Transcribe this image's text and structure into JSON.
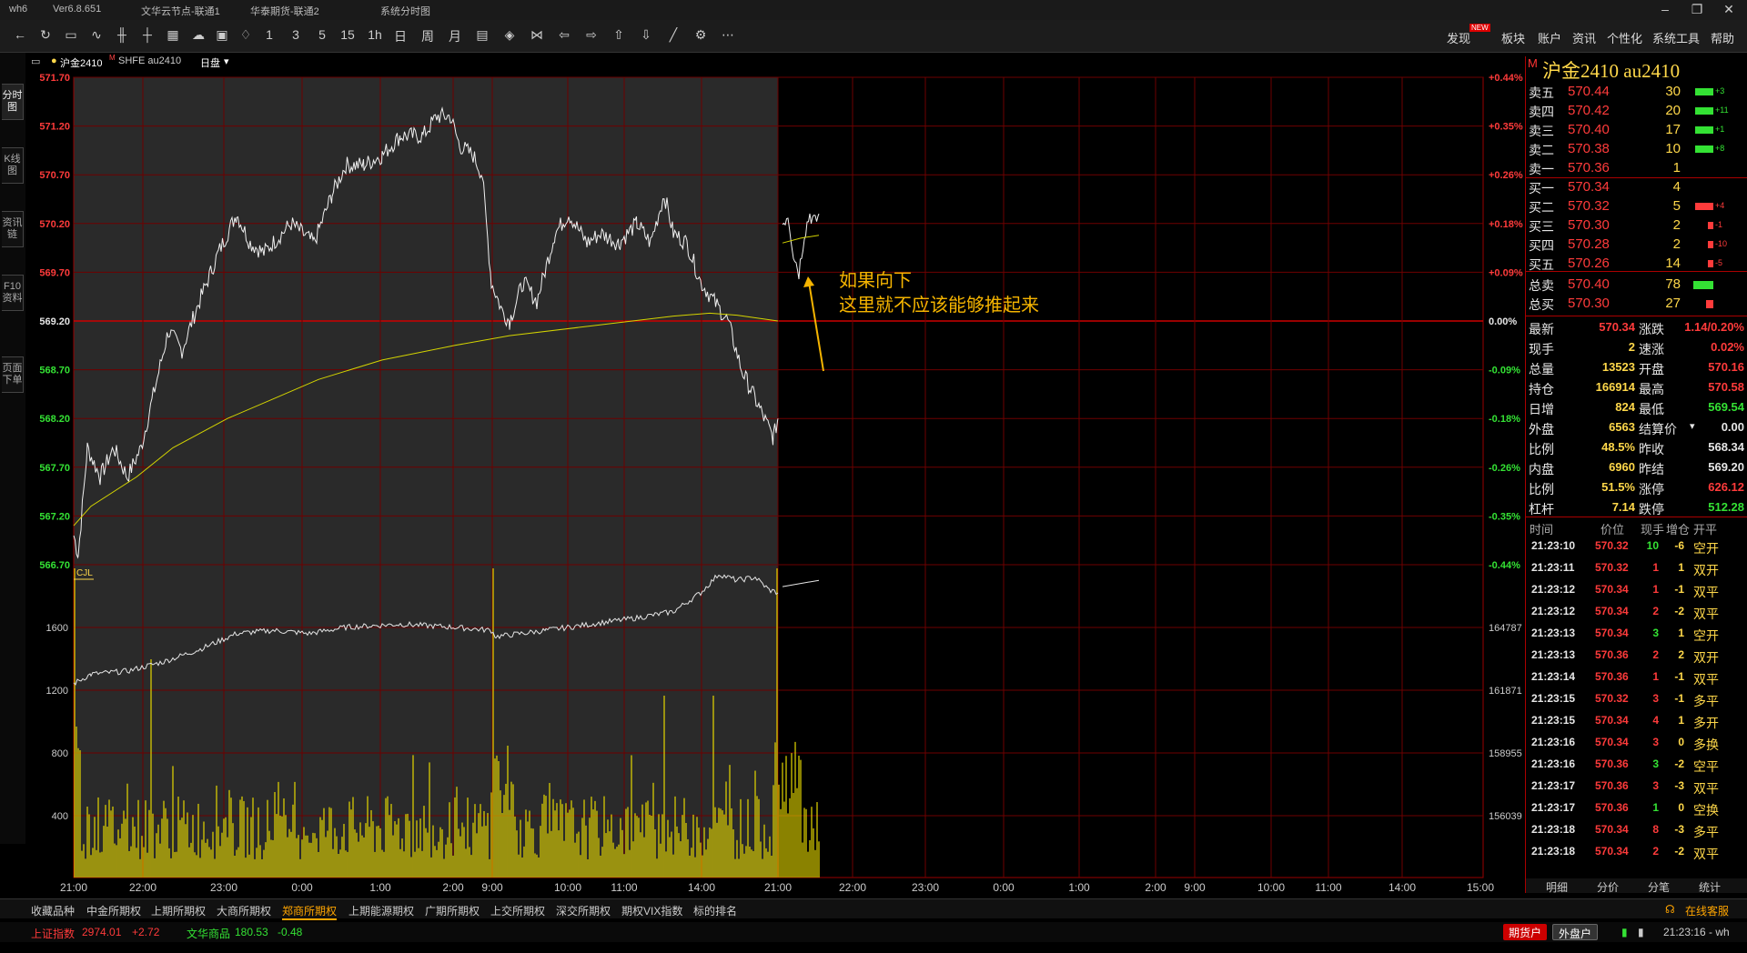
{
  "titlebar": {
    "app": "wh6",
    "version": "Ver6.8.651",
    "node1": "文华云节点-联通1",
    "node2": "华泰期货-联通2",
    "view": "系统分时图"
  },
  "toolbar": {
    "numbers": [
      "1",
      "3",
      "5",
      "15",
      "1h",
      "日",
      "周",
      "月"
    ],
    "right": [
      "发现",
      "板块",
      "账户",
      "资讯",
      "个性化",
      "系统工具",
      "帮助"
    ],
    "new_badge": "NEW"
  },
  "lefttabs": [
    "分时图",
    "K线图",
    "资讯链",
    "F10资料",
    "页面下单"
  ],
  "chart_header": {
    "name": "沪金2410",
    "suffix": "M",
    "market": "SHFE au2410",
    "period": "日盘"
  },
  "chart_data": {
    "type": "line",
    "x_ticks": [
      "21:00",
      "22:00",
      "23:00",
      "0:00",
      "1:00",
      "2:00",
      "9:00",
      "10:00",
      "11:00",
      "14:00",
      "21:00",
      "22:00",
      "23:00",
      "0:00",
      "1:00",
      "2:00",
      "9:00",
      "10:00",
      "11:00",
      "14:00",
      "15:00"
    ],
    "price_ticks": [
      "571.70",
      "571.20",
      "570.70",
      "570.20",
      "569.70",
      "569.20",
      "568.70",
      "568.20",
      "567.70",
      "567.20",
      "566.70"
    ],
    "pct_ticks": [
      "+0.44%",
      "+0.35%",
      "+0.26%",
      "+0.18%",
      "+0.09%",
      "0.00%",
      "-0.09%",
      "-0.18%",
      "-0.26%",
      "-0.35%",
      "-0.44%"
    ],
    "ylim": [
      566.7,
      571.7
    ],
    "prev_settle": 569.2,
    "vol_ticks": [
      "1600",
      "1200",
      "800",
      "400"
    ],
    "oi_ticks": [
      "164787",
      "161871",
      "158955",
      "156039"
    ],
    "vol_label": "CJL",
    "annotation": [
      "如果向下",
      "这里就不应该能够推起来"
    ]
  },
  "panel": {
    "title": "沪金2410  au2410",
    "badge": "M",
    "asks": [
      {
        "l": "卖五",
        "p": "570.44",
        "v": "30",
        "c": "+3"
      },
      {
        "l": "卖四",
        "p": "570.42",
        "v": "20",
        "c": "+11"
      },
      {
        "l": "卖三",
        "p": "570.40",
        "v": "17",
        "c": "+1"
      },
      {
        "l": "卖二",
        "p": "570.38",
        "v": "10",
        "c": "+8"
      },
      {
        "l": "卖一",
        "p": "570.36",
        "v": "1",
        "c": ""
      }
    ],
    "bids": [
      {
        "l": "买一",
        "p": "570.34",
        "v": "4",
        "c": ""
      },
      {
        "l": "买二",
        "p": "570.32",
        "v": "5",
        "c": "+4"
      },
      {
        "l": "买三",
        "p": "570.30",
        "v": "2",
        "c": "-1"
      },
      {
        "l": "买四",
        "p": "570.28",
        "v": "2",
        "c": "-10"
      },
      {
        "l": "买五",
        "p": "570.26",
        "v": "14",
        "c": "-5"
      }
    ],
    "totals": [
      {
        "l": "总卖",
        "p": "570.40",
        "v": "78"
      },
      {
        "l": "总买",
        "p": "570.30",
        "v": "27"
      }
    ],
    "stats": [
      [
        "最新",
        "570.34",
        "涨跌",
        "1.14/0.20%"
      ],
      [
        "现手",
        "2",
        "速涨",
        "0.02%"
      ],
      [
        "总量",
        "13523",
        "开盘",
        "570.16"
      ],
      [
        "持仓",
        "166914",
        "最高",
        "570.58"
      ],
      [
        "日增",
        "824",
        "最低",
        "569.54"
      ],
      [
        "外盘",
        "6563",
        "结算价",
        "0.00"
      ],
      [
        "比例",
        "48.5%",
        "昨收",
        "568.34"
      ],
      [
        "内盘",
        "6960",
        "昨结",
        "569.20"
      ],
      [
        "比例",
        "51.5%",
        "涨停",
        "626.12"
      ],
      [
        "杠杆",
        "7.14",
        "跌停",
        "512.28"
      ]
    ],
    "tick_headers": [
      "时间",
      "价位",
      "现手",
      "增仓",
      "开平"
    ],
    "ticks": [
      [
        "21:23:10",
        "570.32",
        "10",
        "-6",
        "空开"
      ],
      [
        "21:23:11",
        "570.32",
        "1",
        "1",
        "双开"
      ],
      [
        "21:23:12",
        "570.34",
        "1",
        "-1",
        "双平"
      ],
      [
        "21:23:12",
        "570.34",
        "2",
        "-2",
        "双平"
      ],
      [
        "21:23:13",
        "570.34",
        "3",
        "1",
        "空开"
      ],
      [
        "21:23:13",
        "570.36",
        "2",
        "2",
        "双开"
      ],
      [
        "21:23:14",
        "570.36",
        "1",
        "-1",
        "双平"
      ],
      [
        "21:23:15",
        "570.32",
        "3",
        "-1",
        "多平"
      ],
      [
        "21:23:15",
        "570.34",
        "4",
        "1",
        "多开"
      ],
      [
        "21:23:16",
        "570.34",
        "3",
        "0",
        "多换"
      ],
      [
        "21:23:16",
        "570.36",
        "3",
        "-2",
        "空平"
      ],
      [
        "21:23:17",
        "570.36",
        "3",
        "-3",
        "双平"
      ],
      [
        "21:23:17",
        "570.36",
        "1",
        "0",
        "空换"
      ],
      [
        "21:23:18",
        "570.34",
        "8",
        "-3",
        "多平"
      ],
      [
        "21:23:18",
        "570.34",
        "2",
        "-2",
        "双平"
      ]
    ],
    "tabs": [
      "明细",
      "分价",
      "分笔",
      "统计"
    ]
  },
  "bottom_tabs": [
    "收藏品种",
    "中金所期权",
    "上期所期权",
    "大商所期权",
    "郑商所期权",
    "上期能源期权",
    "广期所期权",
    "上交所期权",
    "深交所期权",
    "期权VIX指数",
    "标的排名"
  ],
  "online": "在线客服",
  "status": {
    "idx1_name": "上证指数",
    "idx1_val": "2974.01",
    "idx1_chg": "+2.72",
    "idx2_name": "文华商品",
    "idx2_val": "180.53",
    "idx2_chg": "-0.48",
    "btn1": "期货户",
    "btn2": "外盘户",
    "time": "21:23:16 - wh"
  }
}
